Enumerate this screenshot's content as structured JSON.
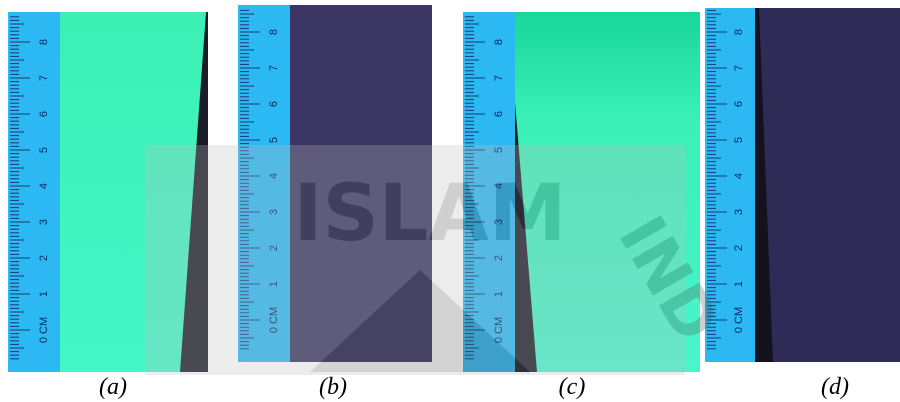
{
  "panels": [
    {
      "label": "(a)"
    },
    {
      "label": "(b)"
    },
    {
      "label": "(c)"
    },
    {
      "label": "(d)"
    }
  ],
  "ruler": {
    "zero_label": "0 CM",
    "marks": [
      "1",
      "2",
      "3",
      "4",
      "5",
      "6",
      "7",
      "8"
    ]
  },
  "watermark": {
    "text": "ISLAM",
    "side_text": "IND"
  }
}
